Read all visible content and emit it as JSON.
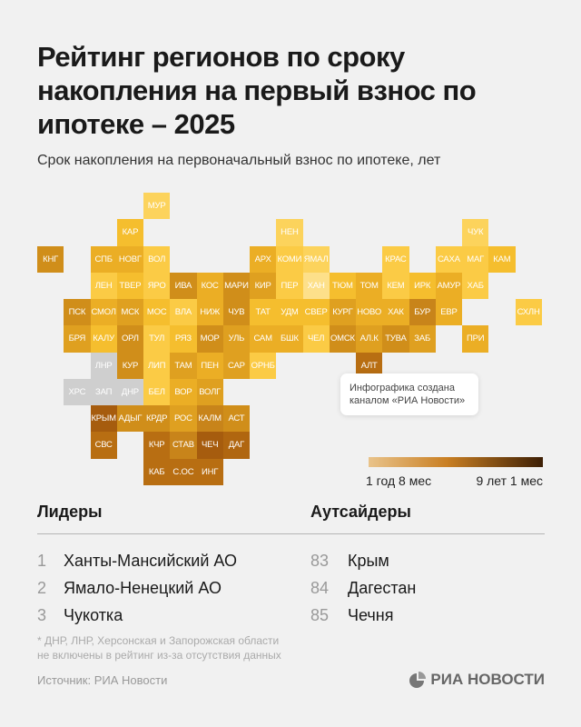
{
  "title": "Рейтинг регионов по сроку накопления на первый взнос по ипотеке – 2025",
  "subtitle": "Срок накопления на первоначальный взнос по ипотеке, лет",
  "map": {
    "no_data_color": "#cfcfcf",
    "tiles": [
      {
        "label": "МУР",
        "color": "#fcd35c"
      },
      {
        "label": "КАР",
        "color": "#f5be2e"
      },
      {
        "label": "НЕН",
        "color": "#fcd35c"
      },
      {
        "label": "ЧУК",
        "color": "#fcd35c"
      },
      {
        "label": "КНГ",
        "color": "#d08e1a"
      },
      {
        "label": "СПБ",
        "color": "#ebae25"
      },
      {
        "label": "НОВГ",
        "color": "#ebae25"
      },
      {
        "label": "ВОЛ",
        "color": "#fbcb45"
      },
      {
        "label": "АРХ",
        "color": "#ebae25"
      },
      {
        "label": "КОМИ",
        "color": "#fbcb45"
      },
      {
        "label": "ЯМАЛ",
        "color": "#fcd35c"
      },
      {
        "label": "КРАС",
        "color": "#fbcb45"
      },
      {
        "label": "САХА",
        "color": "#fbcb45"
      },
      {
        "label": "МАГ",
        "color": "#fbcb45"
      },
      {
        "label": "КАМ",
        "color": "#f5be2e"
      },
      {
        "label": "ЛЕН",
        "color": "#fbcb45"
      },
      {
        "label": "ТВЕР",
        "color": "#f5be2e"
      },
      {
        "label": "ЯРО",
        "color": "#fbcb45"
      },
      {
        "label": "ИВА",
        "color": "#d08e1a"
      },
      {
        "label": "КОС",
        "color": "#ebae25"
      },
      {
        "label": "МАРИ",
        "color": "#d08e1a"
      },
      {
        "label": "КИР",
        "color": "#dfa020"
      },
      {
        "label": "ПЕР",
        "color": "#fbcb45"
      },
      {
        "label": "ХАН",
        "color": "#fde08a"
      },
      {
        "label": "ТЮМ",
        "color": "#f5be2e"
      },
      {
        "label": "ТОМ",
        "color": "#ebae25"
      },
      {
        "label": "КЕМ",
        "color": "#fbcb45"
      },
      {
        "label": "ИРК",
        "color": "#f5be2e"
      },
      {
        "label": "АМУР",
        "color": "#ebae25"
      },
      {
        "label": "ХАБ",
        "color": "#fbcb45"
      },
      {
        "label": "ПСК",
        "color": "#d08e1a"
      },
      {
        "label": "СМОЛ",
        "color": "#ebae25"
      },
      {
        "label": "МСК",
        "color": "#dfa020"
      },
      {
        "label": "МОС",
        "color": "#f5be2e"
      },
      {
        "label": "ВЛА",
        "color": "#fbcb45"
      },
      {
        "label": "НИЖ",
        "color": "#ebae25"
      },
      {
        "label": "ЧУВ",
        "color": "#d08e1a"
      },
      {
        "label": "ТАТ",
        "color": "#f5be2e"
      },
      {
        "label": "УДМ",
        "color": "#f5be2e"
      },
      {
        "label": "СВЕР",
        "color": "#f5be2e"
      },
      {
        "label": "КУРГ",
        "color": "#dfa020"
      },
      {
        "label": "НОВО",
        "color": "#ebae25"
      },
      {
        "label": "ХАК",
        "color": "#ebae25"
      },
      {
        "label": "БУР",
        "color": "#c8841a"
      },
      {
        "label": "ЕВР",
        "color": "#ebae25"
      },
      {
        "label": "СХЛН",
        "color": "#fbcb45"
      },
      {
        "label": "БРЯ",
        "color": "#dfa020"
      },
      {
        "label": "КАЛУ",
        "color": "#f5be2e"
      },
      {
        "label": "ОРЛ",
        "color": "#d08e1a"
      },
      {
        "label": "ТУЛ",
        "color": "#fbcb45"
      },
      {
        "label": "РЯЗ",
        "color": "#f5be2e"
      },
      {
        "label": "МОР",
        "color": "#d08e1a"
      },
      {
        "label": "УЛЬ",
        "color": "#dfa020"
      },
      {
        "label": "САМ",
        "color": "#ebae25"
      },
      {
        "label": "БШК",
        "color": "#ebae25"
      },
      {
        "label": "ЧЕЛ",
        "color": "#fbcb45"
      },
      {
        "label": "ОМСК",
        "color": "#d08e1a"
      },
      {
        "label": "АЛ.К",
        "color": "#dfa020"
      },
      {
        "label": "ТУВА",
        "color": "#d08e1a"
      },
      {
        "label": "ЗАБ",
        "color": "#dfa020"
      },
      {
        "label": "ПРИ",
        "color": "#ebae25"
      },
      {
        "label": "ЛНР",
        "color": "#cfcfcf"
      },
      {
        "label": "КУР",
        "color": "#d08e1a"
      },
      {
        "label": "ЛИП",
        "color": "#fbcb45"
      },
      {
        "label": "ТАМ",
        "color": "#dfa020"
      },
      {
        "label": "ПЕН",
        "color": "#ebae25"
      },
      {
        "label": "САР",
        "color": "#dfa020"
      },
      {
        "label": "ОРНБ",
        "color": "#fbcb45"
      },
      {
        "label": "АЛТ",
        "color": "#b86e12"
      },
      {
        "label": "ХРС",
        "color": "#cfcfcf"
      },
      {
        "label": "ЗАП",
        "color": "#cfcfcf"
      },
      {
        "label": "ДНР",
        "color": "#cfcfcf"
      },
      {
        "label": "БЕЛ",
        "color": "#fbcb45"
      },
      {
        "label": "ВОР",
        "color": "#ebae25"
      },
      {
        "label": "ВОЛГ",
        "color": "#dfa020"
      },
      {
        "label": "КРЫМ",
        "color": "#a65c0e"
      },
      {
        "label": "АДЫГ",
        "color": "#d08e1a"
      },
      {
        "label": "КРДР",
        "color": "#d08e1a"
      },
      {
        "label": "РОС",
        "color": "#dfa020"
      },
      {
        "label": "КАЛМ",
        "color": "#c8841a"
      },
      {
        "label": "АСТ",
        "color": "#d08e1a"
      },
      {
        "label": "СВС",
        "color": "#b86e12"
      },
      {
        "label": "КЧР",
        "color": "#b86e12"
      },
      {
        "label": "СТАВ",
        "color": "#c8841a"
      },
      {
        "label": "ЧЕЧ",
        "color": "#a65c0e"
      },
      {
        "label": "ДАГ",
        "color": "#b06610"
      },
      {
        "label": "КАБ",
        "color": "#b86e12"
      },
      {
        "label": "С.ОС",
        "color": "#b86e12"
      },
      {
        "label": "ИНГ",
        "color": "#b86e12"
      }
    ]
  },
  "callout": "Инфографика создана каналом «РИА Новости»",
  "legend": {
    "min_label": "1 год 8 мес",
    "max_label": "9 лет 1 мес",
    "color_low": "#e9c38a",
    "color_high": "#3d1f05"
  },
  "leaders": {
    "heading": "Лидеры",
    "items": [
      {
        "rank": "1",
        "name": "Ханты-Мансийский АО"
      },
      {
        "rank": "2",
        "name": "Ямало-Ненецкий АО"
      },
      {
        "rank": "3",
        "name": "Чукотка"
      }
    ]
  },
  "outsiders": {
    "heading": "Аутсайдеры",
    "items": [
      {
        "rank": "83",
        "name": "Крым"
      },
      {
        "rank": "84",
        "name": "Дагестан"
      },
      {
        "rank": "85",
        "name": "Чечня"
      }
    ]
  },
  "footnote_1": "* ДНР, ЛНР, Херсонская и Запорожская области",
  "footnote_2": "не включены в рейтинг из-за отсутствия данных",
  "source": "Источник: РИА Новости",
  "logo": "РИА НОВОСТИ"
}
